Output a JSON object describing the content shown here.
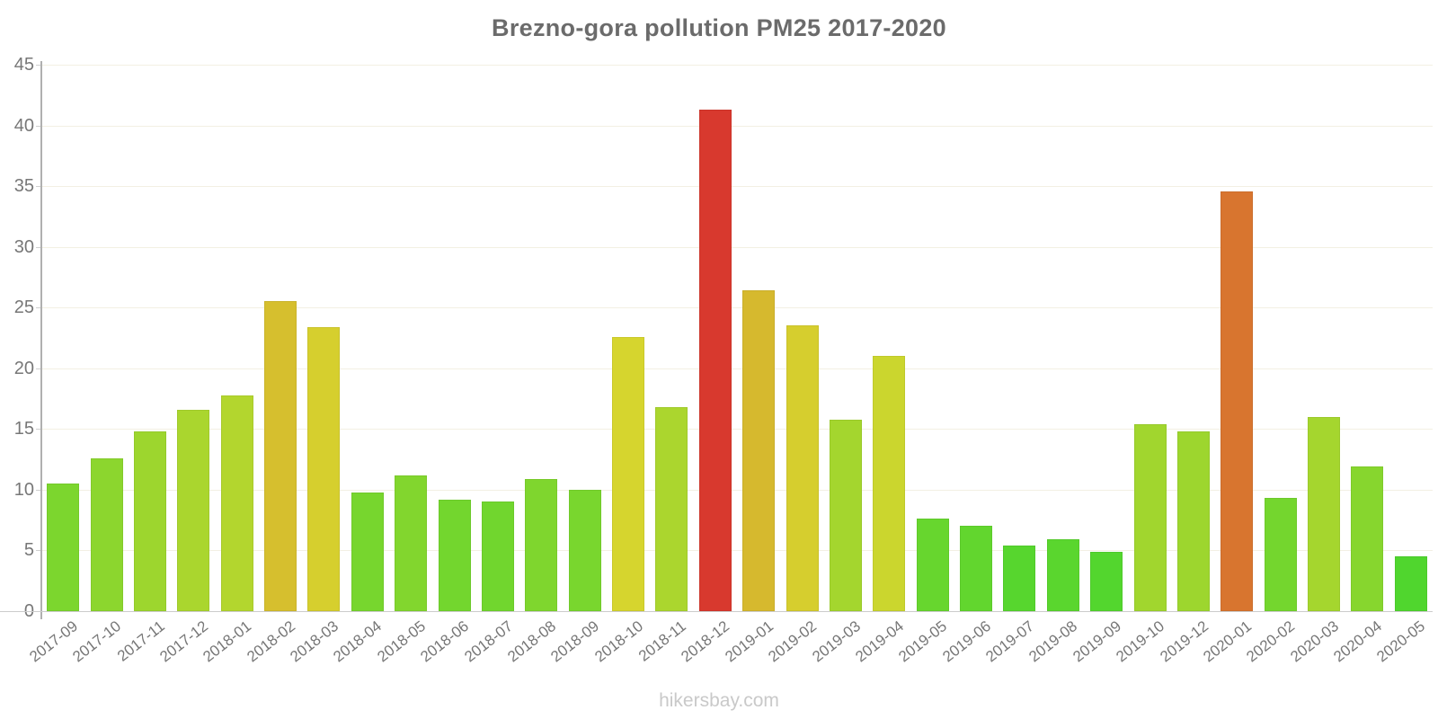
{
  "title": "Brezno-gora pollution PM25 2017-2020",
  "watermark": "hikersbay.com",
  "colors": {
    "title": "#6b6b6b",
    "axis_labels": "#777777",
    "grid": "#f3f0e3",
    "axis_line": "#b0b0b0",
    "baseline": "#cccccc",
    "watermark": "#c9c9c9"
  },
  "chart_data": {
    "type": "bar",
    "title": "Brezno-gora pollution PM25 2017-2020",
    "xlabel": "",
    "ylabel": "",
    "ylim": [
      0,
      45
    ],
    "yticks": [
      0,
      5,
      10,
      15,
      20,
      25,
      30,
      35,
      40,
      45
    ],
    "grid": true,
    "legend_position": "none",
    "categories": [
      "2017-09",
      "2017-10",
      "2017-11",
      "2017-12",
      "2018-01",
      "2018-02",
      "2018-03",
      "2018-04",
      "2018-05",
      "2018-06",
      "2018-07",
      "2018-08",
      "2018-09",
      "2018-10",
      "2018-11",
      "2018-12",
      "2019-01",
      "2019-02",
      "2019-03",
      "2019-04",
      "2019-05",
      "2019-06",
      "2019-07",
      "2019-08",
      "2019-09",
      "2019-10",
      "2019-12",
      "2020-01",
      "2020-02",
      "2020-03",
      "2020-04",
      "2020-05"
    ],
    "values": [
      10.5,
      12.6,
      14.8,
      16.6,
      17.8,
      25.5,
      23.4,
      9.8,
      11.2,
      9.2,
      9.0,
      10.9,
      10.0,
      22.6,
      16.8,
      41.3,
      26.4,
      23.5,
      15.8,
      21.0,
      7.6,
      7.0,
      5.4,
      5.9,
      4.9,
      15.4,
      14.8,
      34.6,
      9.3,
      16.0,
      11.9,
      4.5
    ],
    "bar_colors": [
      "#7CD62E",
      "#8CD62E",
      "#9DD62E",
      "#AAD62E",
      "#B3D62E",
      "#D6BF2E",
      "#D6CF2E",
      "#77D62E",
      "#82D62E",
      "#73D62E",
      "#71D62E",
      "#7FD62E",
      "#79D62E",
      "#D6D52E",
      "#ABD62E",
      "#D8392E",
      "#D6B92E",
      "#D6CE2E",
      "#A4D62E",
      "#CBD62E",
      "#67D62E",
      "#62D62E",
      "#57D62E",
      "#5AD62E",
      "#53D62E",
      "#A1D62E",
      "#9DD62E",
      "#D8752F",
      "#74D62E",
      "#A5D62E",
      "#87D62E",
      "#50D62E"
    ],
    "color_scale_note": "green (low) to red (high) pollution severity"
  }
}
